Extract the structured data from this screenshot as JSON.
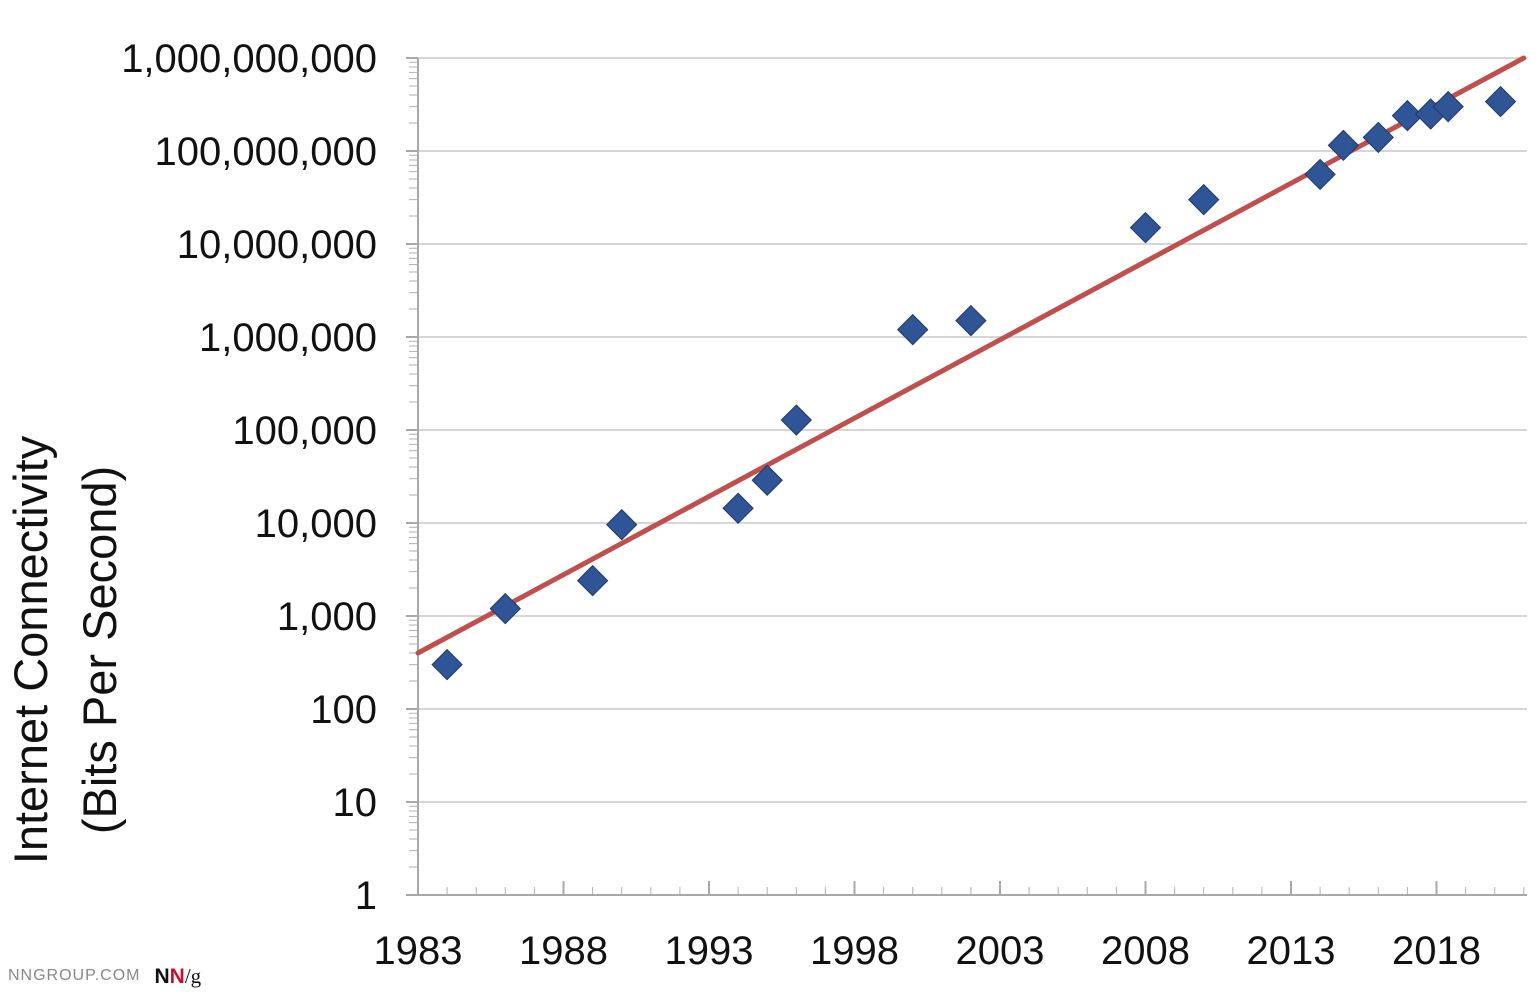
{
  "chart_data": {
    "type": "scatter",
    "title": "",
    "ylabel": [
      "Internet Connectivity",
      "(Bits Per Second)"
    ],
    "xlabel": "",
    "y_scale": "log",
    "ylim": [
      1,
      1000000000
    ],
    "xlim": [
      1983,
      2021
    ],
    "y_tick_labels": [
      "1",
      "10",
      "100",
      "1,000",
      "10,000",
      "100,000",
      "1,000,000",
      "10,000,000",
      "100,000,000",
      "1,000,000,000"
    ],
    "x_tick_labels": [
      "1983",
      "1988",
      "1993",
      "1998",
      "2003",
      "2008",
      "2013",
      "2018"
    ],
    "grid": "horizontal",
    "series": [
      {
        "kind": "points",
        "marker": "diamond",
        "color": "#2f5597",
        "points": [
          {
            "x": 1984,
            "y": 300
          },
          {
            "x": 1986,
            "y": 1200
          },
          {
            "x": 1989,
            "y": 2400
          },
          {
            "x": 1990,
            "y": 9600
          },
          {
            "x": 1994,
            "y": 14400
          },
          {
            "x": 1995,
            "y": 28800
          },
          {
            "x": 1996,
            "y": 128000
          },
          {
            "x": 2000,
            "y": 1200000
          },
          {
            "x": 2002,
            "y": 1500000
          },
          {
            "x": 2008,
            "y": 15000000
          },
          {
            "x": 2010,
            "y": 30000000
          },
          {
            "x": 2014,
            "y": 56000000
          },
          {
            "x": 2014.8,
            "y": 115000000
          },
          {
            "x": 2016,
            "y": 140000000
          },
          {
            "x": 2017,
            "y": 240000000
          },
          {
            "x": 2017.8,
            "y": 250000000
          },
          {
            "x": 2018.4,
            "y": 300000000
          },
          {
            "x": 2020.2,
            "y": 340000000
          }
        ]
      },
      {
        "kind": "trendline",
        "color": "#c0504d",
        "points": [
          {
            "x": 1983,
            "y": 400
          },
          {
            "x": 2021,
            "y": 1000000000
          }
        ]
      }
    ]
  },
  "branding": {
    "site": "NNGROUP.COM",
    "logo_n1": "N",
    "logo_n2": "N",
    "logo_slash_g": "/g"
  }
}
